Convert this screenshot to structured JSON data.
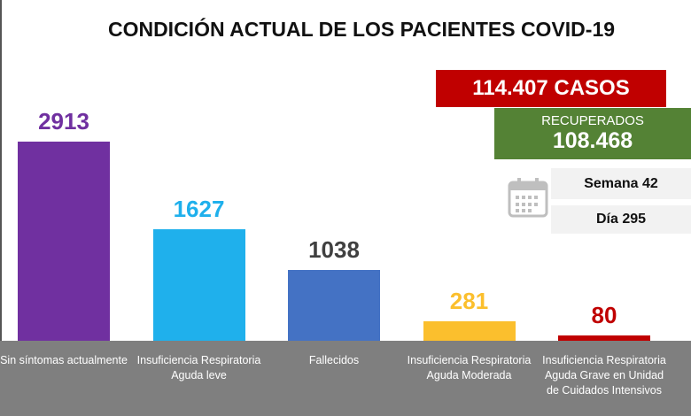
{
  "chart_data": {
    "type": "bar",
    "title": "CONDICIÓN ACTUAL DE LOS PACIENTES COVID-19",
    "categories": [
      "Sin síntomas actualmente",
      "Insuficiencia Respiratoria Aguda leve",
      "Fallecidos",
      "Insuficiencia Respiratoria Aguda Moderada",
      "Insuficiencia Respiratoria Aguda Grave en Unidad de Cuidados Intensivos"
    ],
    "values": [
      2913,
      1627,
      1038,
      281,
      80
    ],
    "colors": [
      "#7030a0",
      "#1fb0ec",
      "#4472c4",
      "#fbbf2d",
      "#c00000"
    ],
    "value_label_colors": [
      "#7030a0",
      "#1fb0ec",
      "#404040",
      "#fbbf2d",
      "#c00000"
    ],
    "annotations": {
      "cases": "114.407 CASOS",
      "recovered_label": "RECUPERADOS",
      "recovered": "108.468",
      "week": "Semana 42",
      "day": "Día 295"
    }
  }
}
